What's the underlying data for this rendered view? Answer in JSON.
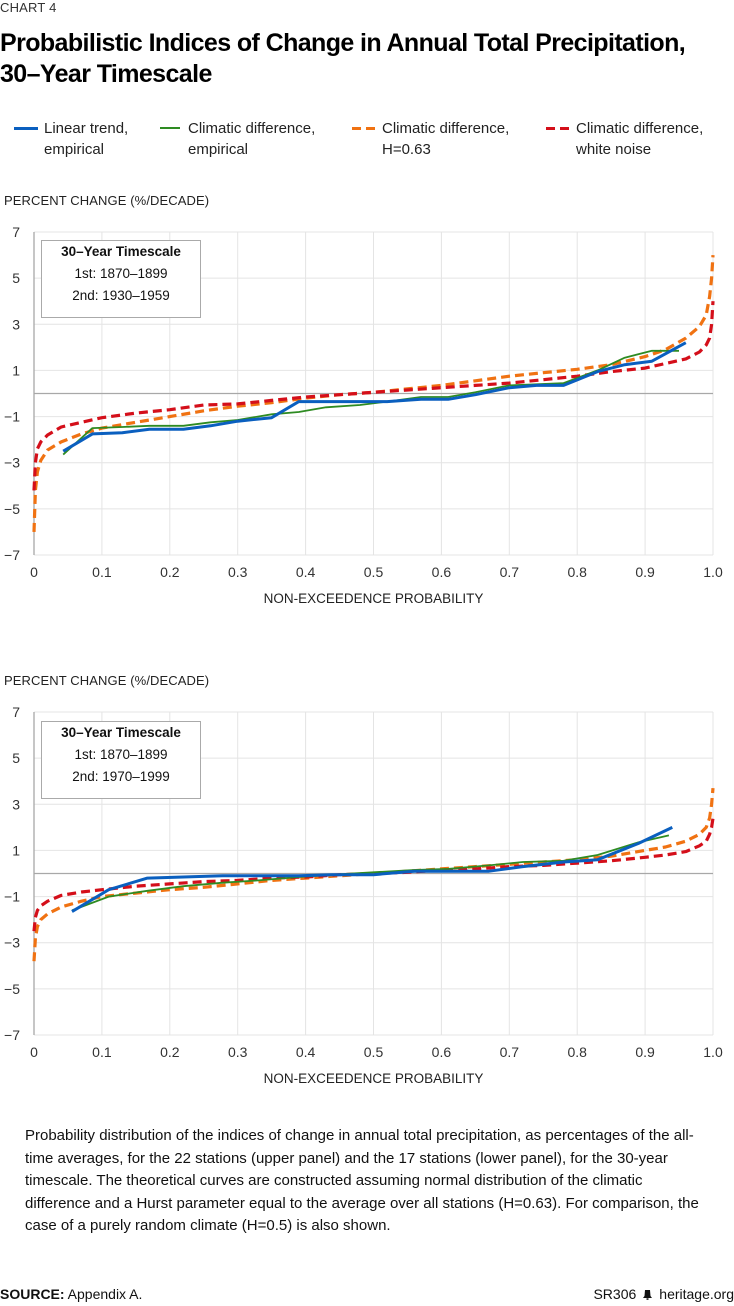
{
  "header": {
    "kicker": "CHART 4",
    "title_line1": "Probabilistic Indices of Change in Annual Total Precipitation,",
    "title_line2": "30–Year Timescale"
  },
  "legend": [
    {
      "line1": "Linear trend,",
      "line2": "empirical",
      "color": "#0a5fbf",
      "style": "solid"
    },
    {
      "line1": "Climatic difference,",
      "line2": "empirical",
      "color": "#2e8b22",
      "style": "solid"
    },
    {
      "line1": "Climatic difference,",
      "line2": "H=0.63",
      "color": "#f07212",
      "style": "dashed"
    },
    {
      "line1": "Climatic difference,",
      "line2": "white noise",
      "color": "#d40f1a",
      "style": "dashed"
    }
  ],
  "chart_data": [
    {
      "type": "line",
      "panel": "upper",
      "ylabel": "PERCENT CHANGE (%/DECADE)",
      "xlabel": "NON-EXCEEDENCE PROBABILITY",
      "xlim": [
        0,
        1.0
      ],
      "ylim": [
        -7,
        7
      ],
      "xticks": [
        "0",
        "0.1",
        "0.2",
        "0.3",
        "0.4",
        "0.5",
        "0.6",
        "0.7",
        "0.8",
        "0.9",
        "1.0"
      ],
      "yticks": [
        "7",
        "5",
        "3",
        "1",
        "−1",
        "−3",
        "−5",
        "−7"
      ],
      "grid": true,
      "inset": {
        "title": "30–Year Timescale",
        "first": "1st: 1870–1899",
        "second": "2nd: 1930–1959"
      },
      "series": [
        {
          "name": "Linear trend, empirical",
          "x": [
            0.043,
            0.086,
            0.13,
            0.17,
            0.22,
            0.26,
            0.3,
            0.35,
            0.39,
            0.43,
            0.48,
            0.52,
            0.57,
            0.61,
            0.65,
            0.7,
            0.74,
            0.78,
            0.83,
            0.87,
            0.91,
            0.96
          ],
          "y": [
            -2.5,
            -1.75,
            -1.7,
            -1.55,
            -1.55,
            -1.4,
            -1.2,
            -1.05,
            -0.35,
            -0.35,
            -0.35,
            -0.35,
            -0.25,
            -0.25,
            -0.05,
            0.25,
            0.35,
            0.35,
            0.95,
            1.25,
            1.4,
            2.2
          ]
        },
        {
          "name": "Climatic difference, empirical",
          "x": [
            0.043,
            0.086,
            0.13,
            0.17,
            0.22,
            0.26,
            0.3,
            0.35,
            0.39,
            0.43,
            0.48,
            0.52,
            0.57,
            0.61,
            0.65,
            0.7,
            0.74,
            0.78,
            0.83,
            0.87,
            0.91,
            0.95
          ],
          "y": [
            -2.65,
            -1.5,
            -1.45,
            -1.4,
            -1.4,
            -1.25,
            -1.15,
            -0.9,
            -0.8,
            -0.6,
            -0.5,
            -0.35,
            -0.15,
            -0.15,
            0.05,
            0.35,
            0.4,
            0.45,
            1.0,
            1.55,
            1.85,
            1.85
          ]
        },
        {
          "name": "Climatic difference, H=0.63",
          "x": [
            0.0,
            0.002,
            0.005,
            0.01,
            0.02,
            0.04,
            0.07,
            0.1,
            0.15,
            0.2,
            0.25,
            0.3,
            0.35,
            0.4,
            0.45,
            0.5,
            0.55,
            0.6,
            0.65,
            0.7,
            0.75,
            0.8,
            0.85,
            0.9,
            0.93,
            0.96,
            0.98,
            0.99,
            0.995,
            0.998,
            1.0
          ],
          "y": [
            -6.0,
            -4.2,
            -3.4,
            -2.9,
            -2.45,
            -2.1,
            -1.75,
            -1.5,
            -1.25,
            -1.0,
            -0.75,
            -0.55,
            -0.4,
            -0.2,
            -0.05,
            0.05,
            0.2,
            0.35,
            0.55,
            0.75,
            0.9,
            1.05,
            1.25,
            1.6,
            1.9,
            2.4,
            2.9,
            3.4,
            4.2,
            5.0,
            6.0
          ]
        },
        {
          "name": "Climatic difference, white noise",
          "x": [
            0.0,
            0.002,
            0.005,
            0.01,
            0.02,
            0.04,
            0.07,
            0.1,
            0.15,
            0.2,
            0.25,
            0.3,
            0.35,
            0.4,
            0.45,
            0.5,
            0.55,
            0.6,
            0.65,
            0.7,
            0.75,
            0.8,
            0.85,
            0.9,
            0.93,
            0.96,
            0.98,
            0.99,
            0.995,
            0.998,
            1.0
          ],
          "y": [
            -4.2,
            -3.0,
            -2.4,
            -2.1,
            -1.8,
            -1.45,
            -1.25,
            -1.05,
            -0.85,
            -0.7,
            -0.5,
            -0.45,
            -0.3,
            -0.15,
            -0.05,
            0.05,
            0.15,
            0.25,
            0.35,
            0.45,
            0.6,
            0.75,
            0.95,
            1.1,
            1.3,
            1.5,
            1.8,
            2.1,
            2.4,
            3.0,
            4.0
          ]
        }
      ]
    },
    {
      "type": "line",
      "panel": "lower",
      "ylabel": "PERCENT CHANGE (%/DECADE)",
      "xlabel": "NON-EXCEEDENCE PROBABILITY",
      "xlim": [
        0,
        1.0
      ],
      "ylim": [
        -7,
        7
      ],
      "xticks": [
        "0",
        "0.1",
        "0.2",
        "0.3",
        "0.4",
        "0.5",
        "0.6",
        "0.7",
        "0.8",
        "0.9",
        "1.0"
      ],
      "yticks": [
        "7",
        "5",
        "3",
        "1",
        "−1",
        "−3",
        "−5",
        "−7"
      ],
      "grid": true,
      "inset": {
        "title": "30–Year Timescale",
        "first": "1st: 1870–1899",
        "second": "2nd: 1970–1999"
      },
      "series": [
        {
          "name": "Linear trend, empirical",
          "x": [
            0.056,
            0.11,
            0.167,
            0.22,
            0.278,
            0.33,
            0.39,
            0.44,
            0.5,
            0.56,
            0.61,
            0.67,
            0.72,
            0.78,
            0.83,
            0.89,
            0.94
          ],
          "y": [
            -1.65,
            -0.7,
            -0.2,
            -0.15,
            -0.1,
            -0.1,
            -0.1,
            -0.05,
            -0.05,
            0.1,
            0.1,
            0.1,
            0.3,
            0.5,
            0.6,
            1.3,
            2.0
          ]
        },
        {
          "name": "Climatic difference, empirical",
          "x": [
            0.056,
            0.11,
            0.167,
            0.22,
            0.278,
            0.33,
            0.39,
            0.44,
            0.5,
            0.56,
            0.61,
            0.67,
            0.72,
            0.78,
            0.83,
            0.89,
            0.935
          ],
          "y": [
            -1.6,
            -1.0,
            -0.75,
            -0.55,
            -0.4,
            -0.3,
            -0.15,
            -0.05,
            0.05,
            0.15,
            0.2,
            0.35,
            0.5,
            0.55,
            0.8,
            1.35,
            1.65
          ]
        },
        {
          "name": "Climatic difference, H=0.63",
          "x": [
            0.0,
            0.002,
            0.005,
            0.01,
            0.02,
            0.04,
            0.07,
            0.1,
            0.15,
            0.2,
            0.25,
            0.3,
            0.35,
            0.4,
            0.45,
            0.5,
            0.55,
            0.6,
            0.65,
            0.7,
            0.75,
            0.8,
            0.85,
            0.9,
            0.93,
            0.96,
            0.98,
            0.99,
            0.995,
            0.998,
            1.0
          ],
          "y": [
            -3.8,
            -2.8,
            -2.3,
            -2.0,
            -1.75,
            -1.45,
            -1.2,
            -1.0,
            -0.85,
            -0.7,
            -0.6,
            -0.45,
            -0.3,
            -0.2,
            -0.1,
            0.0,
            0.1,
            0.2,
            0.3,
            0.4,
            0.5,
            0.6,
            0.75,
            1.0,
            1.15,
            1.4,
            1.7,
            2.0,
            2.4,
            3.0,
            3.7
          ]
        },
        {
          "name": "Climatic difference, white noise",
          "x": [
            0.0,
            0.002,
            0.005,
            0.01,
            0.02,
            0.04,
            0.07,
            0.1,
            0.15,
            0.2,
            0.25,
            0.3,
            0.35,
            0.4,
            0.45,
            0.5,
            0.55,
            0.6,
            0.65,
            0.7,
            0.75,
            0.8,
            0.85,
            0.9,
            0.93,
            0.96,
            0.98,
            0.99,
            0.995,
            0.998,
            1.0
          ],
          "y": [
            -2.5,
            -1.9,
            -1.6,
            -1.4,
            -1.2,
            -0.95,
            -0.8,
            -0.7,
            -0.55,
            -0.45,
            -0.35,
            -0.3,
            -0.2,
            -0.15,
            -0.05,
            0.0,
            0.05,
            0.15,
            0.2,
            0.3,
            0.35,
            0.45,
            0.55,
            0.7,
            0.8,
            0.95,
            1.2,
            1.4,
            1.7,
            2.0,
            2.4
          ]
        }
      ]
    }
  ],
  "caption": "Probability distribution of the indices of change in annual total precipitation, as percentages of the all-time averages, for the 22 stations (upper panel) and the 17 stations (lower panel), for the 30-year timescale. The theoretical curves are constructed assuming normal distribution of the climatic difference and a Hurst parameter equal to the average over all stations (H=0.63). For comparison, the case of a purely random climate (H=0.5) is also shown.",
  "footer": {
    "source_label": "SOURCE:",
    "source_text": " Appendix A.",
    "report_id": "SR306",
    "site": "heritage.org"
  }
}
